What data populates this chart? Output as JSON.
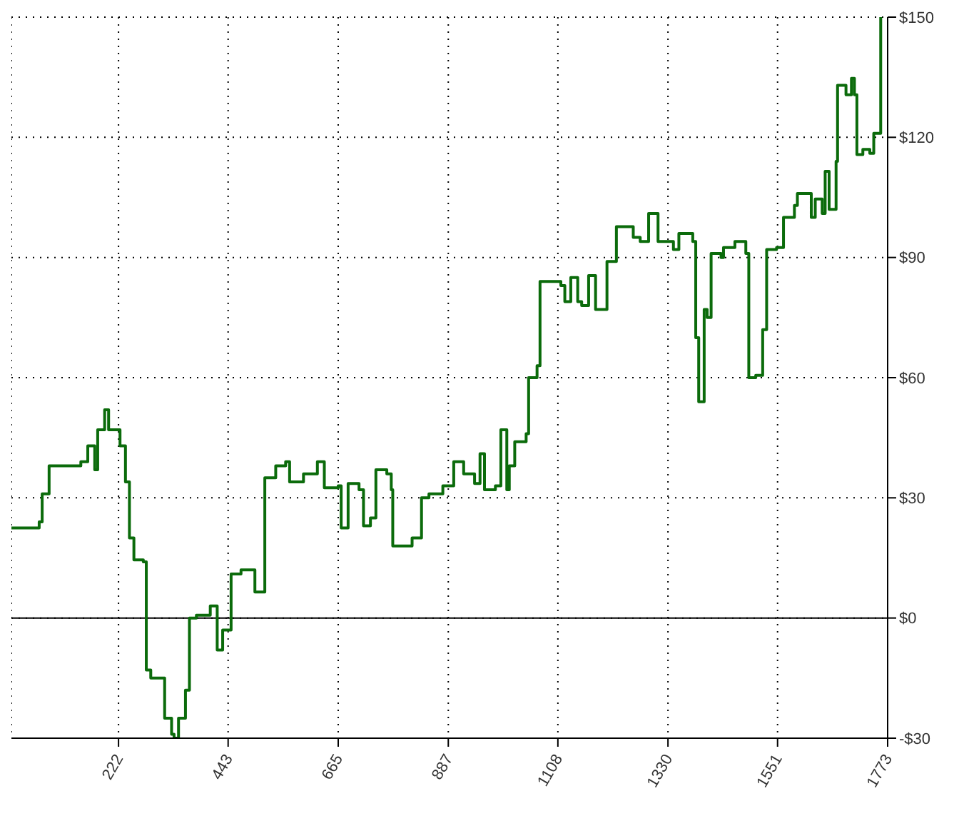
{
  "chart_data": {
    "type": "step",
    "x": [
      6,
      62,
      68,
      82,
      146,
      160,
      174,
      180,
      194,
      202,
      225,
      236,
      244,
      253,
      272,
      278,
      287,
      306,
      315,
      329,
      334,
      343,
      357,
      365,
      379,
      407,
      421,
      432,
      449,
      469,
      497,
      517,
      539,
      559,
      567,
      595,
      623,
      637,
      665,
      671,
      685,
      707,
      716,
      730,
      741,
      763,
      772,
      775,
      791,
      814,
      833,
      848,
      876,
      898,
      918,
      940,
      951,
      960,
      982,
      993,
      1005,
      1010,
      1021,
      1044,
      1049,
      1066,
      1072,
      1100,
      1114,
      1122,
      1134,
      1148,
      1156,
      1170,
      1184,
      1207,
      1226,
      1260,
      1274,
      1291,
      1310,
      1341,
      1352,
      1380,
      1386,
      1392,
      1403,
      1409,
      1417,
      1437,
      1442,
      1465,
      1487,
      1493,
      1507,
      1521,
      1529,
      1549,
      1563,
      1585,
      1591,
      1619,
      1627,
      1641,
      1647,
      1655,
      1669,
      1672,
      1689,
      1700,
      1706,
      1711,
      1723,
      1737,
      1745,
      1759
    ],
    "series": [
      {
        "color": "#0b6b0b",
        "values": [
          22.5,
          24,
          31,
          38,
          39,
          43,
          37,
          47,
          52,
          47,
          43,
          34,
          20,
          14.5,
          14,
          -13,
          -15,
          -15,
          -25,
          -29,
          -30,
          -25,
          -18,
          0,
          0.7,
          3,
          -8,
          -3,
          11,
          12,
          6.5,
          35,
          38,
          39,
          34,
          36,
          39,
          32.5,
          33,
          22.5,
          33.6,
          32,
          23,
          25,
          37,
          36,
          32,
          18,
          18,
          20,
          30,
          31,
          33,
          39,
          36,
          33.6,
          41,
          32,
          33,
          47,
          32,
          38,
          44,
          46,
          60,
          63,
          84,
          84,
          83,
          79,
          85,
          79,
          78,
          85.5,
          77,
          89,
          97.7,
          95,
          94,
          101,
          94,
          92,
          96,
          94,
          70,
          54,
          77,
          75,
          91,
          90,
          92.5,
          94,
          91,
          60,
          60.6,
          72,
          92,
          92.5,
          100,
          103,
          106,
          100,
          104.6,
          101,
          111.5,
          102,
          114,
          133,
          130.6,
          134.7,
          130.6,
          115.7,
          117,
          116,
          121,
          150
        ]
      }
    ],
    "xlim": [
      6,
      1773
    ],
    "xticks": [
      222,
      443,
      665,
      887,
      1108,
      1330,
      1551,
      1773
    ],
    "ylim": [
      -30,
      150
    ],
    "yticks": [
      {
        "value": -30,
        "label": "-$30"
      },
      {
        "value": 0,
        "label": "$0"
      },
      {
        "value": 30,
        "label": "$30"
      },
      {
        "value": 60,
        "label": "$60"
      },
      {
        "value": 90,
        "label": "$90"
      },
      {
        "value": 120,
        "label": "$120"
      },
      {
        "value": 150,
        "label": "$150"
      }
    ],
    "grid": true,
    "legend": false,
    "ref_lines": [
      {
        "axis": "y",
        "value": 0,
        "color": "#000000"
      }
    ]
  }
}
